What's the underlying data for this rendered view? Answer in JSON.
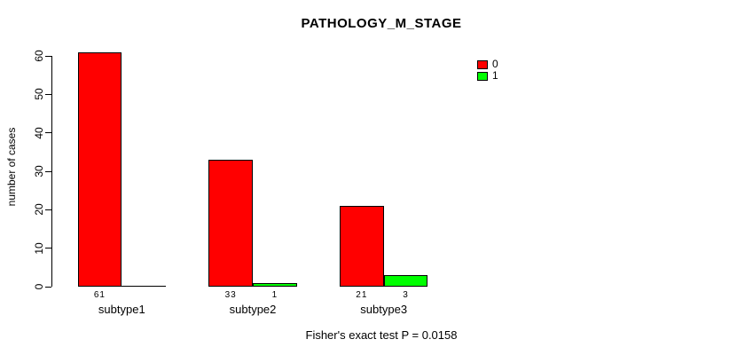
{
  "title": "PATHOLOGY_M_STAGE",
  "footer": "Fisher's exact test P = 0.0158",
  "chart_data": {
    "type": "bar",
    "grouped": true,
    "title": "PATHOLOGY_M_STAGE",
    "xlabel": "",
    "ylabel": "number of cases",
    "ylim": [
      0,
      60
    ],
    "yticks": [
      0,
      10,
      20,
      30,
      40,
      50,
      60
    ],
    "grid": false,
    "categories": [
      "subtype1",
      "subtype2",
      "subtype3"
    ],
    "series": [
      {
        "name": "0",
        "color": "#FF0000",
        "values": [
          61,
          33,
          21
        ]
      },
      {
        "name": "1",
        "color": "#00FF00",
        "values": [
          0,
          1,
          3
        ]
      }
    ],
    "bar_value_labels": [
      [
        "61",
        ""
      ],
      [
        "33",
        "1"
      ],
      [
        "21",
        "3"
      ]
    ],
    "legend_position": "top-right",
    "legend_entries": [
      {
        "label": "0",
        "color": "#FF0000"
      },
      {
        "label": "1",
        "color": "#00FF00"
      }
    ],
    "annotation": "Fisher's exact test P = 0.0158"
  }
}
